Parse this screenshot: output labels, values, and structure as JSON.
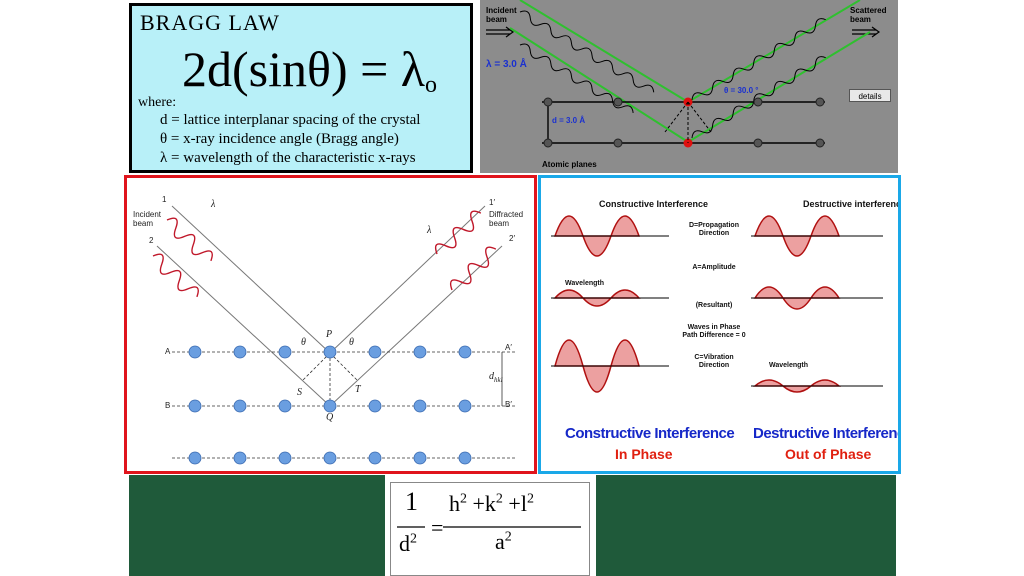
{
  "bragg": {
    "title": "BRAGG  LAW",
    "equation": "2d(sinθ) = λ",
    "equation_sub": "o",
    "where": "where:",
    "defs": [
      "d = lattice  interplanar spacing of the crystal",
      "θ = x-ray incidence angle (Bragg angle)",
      "λ = wavelength of the characteristic x-rays"
    ]
  },
  "animation": {
    "incident_1": "Incident",
    "incident_2": "beam",
    "scattered_1": "Scattered",
    "scattered_2": "beam",
    "lambda": "λ = 3.0  Å",
    "theta": "θ = 30.0 °",
    "d": "d = 3.0  Å",
    "details": "details",
    "atomic_planes": "Atomic planes"
  },
  "diffraction": {
    "n1": "1",
    "n2": "2",
    "n1p": "1′",
    "n2p": "2′",
    "incident_1": "Incident",
    "incident_2": "beam",
    "diffracted_1": "Diffracted",
    "diffracted_2": "beam",
    "lambda1": "λ",
    "lambda2": "λ",
    "A": "A",
    "Ap": "A′",
    "B": "B",
    "Bp": "B′",
    "P": "P",
    "Q": "Q",
    "S": "S",
    "T": "T",
    "dhkl": "d",
    "dhkl_sub": "hkl",
    "theta": "θ"
  },
  "interference": {
    "constructive_title": "Constructive Interference",
    "destructive_title": "Destructive interference",
    "d_prop": "D=Propagation Direction",
    "a_amp": "A=Amplitude",
    "resultant": "A",
    "resultant_eq": "W",
    "resultant_label": "(Resultant)",
    "waves_phase": "Waves in Phase Path Difference = 0",
    "c_vib": "C=Vibration Direction",
    "wavelength": "Wavelength",
    "bottom_con": "Constructive Interference",
    "in_phase": "In Phase",
    "bottom_des": "Destructive Interference",
    "out_phase": "Out of Phase",
    "D": "D",
    "C": "C",
    "Aw": "A",
    "Aw_sub": "W",
    "Aw1_sub": "W",
    "AR_sub": "R",
    "AR2_sub": "R"
  },
  "formula": {
    "one": "1",
    "denominator": "d",
    "numerator_h": "h",
    "numerator_k": "k",
    "numerator_l": "l",
    "a": "a",
    "exp": "2",
    "equals": "=",
    "plus": "+"
  }
}
